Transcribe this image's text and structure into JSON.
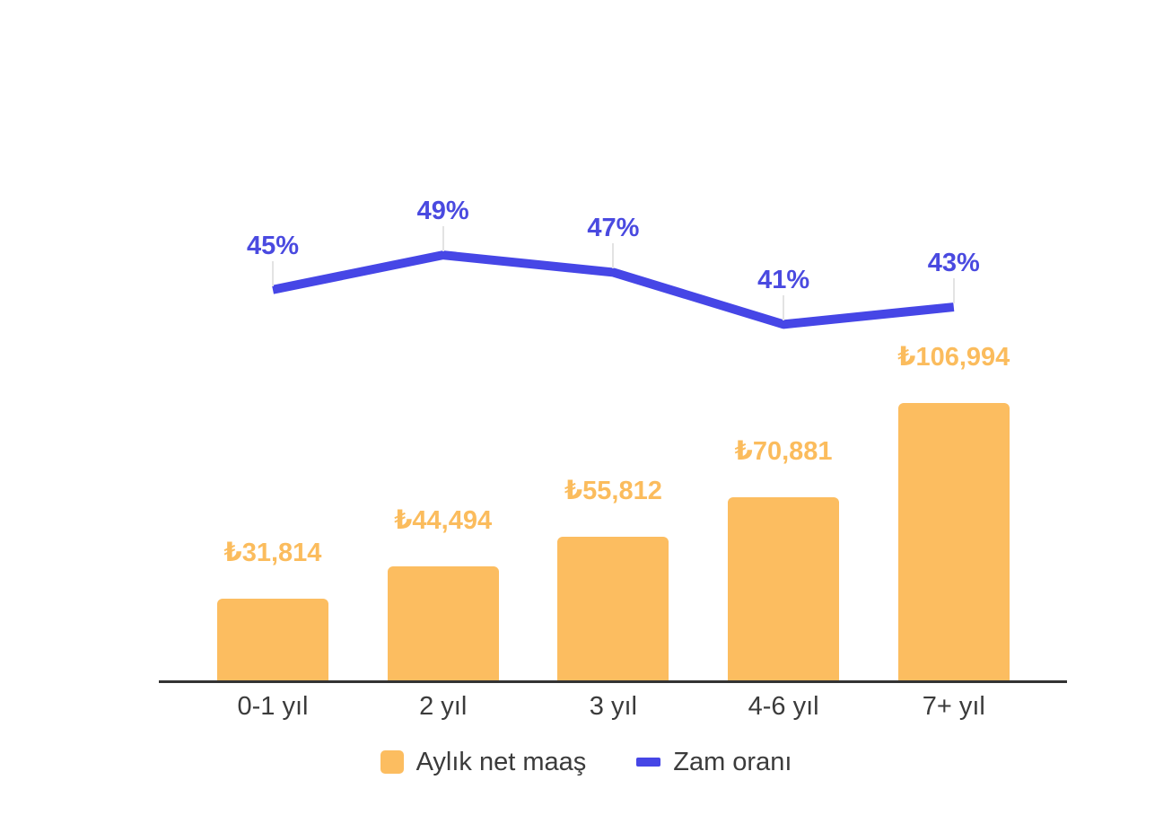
{
  "chart_data": {
    "type": "combo-bar-line",
    "categories": [
      "0-1 yıl",
      "2 yıl",
      "3 yıl",
      "4-6 yıl",
      "7+ yıl"
    ],
    "series": [
      {
        "name": "Aylık net maaş",
        "kind": "bar",
        "values": [
          31814,
          44494,
          55812,
          70881,
          106994
        ],
        "labels": [
          "₺31,814",
          "₺44,494",
          "₺55,812",
          "₺70,881",
          "₺106,994"
        ],
        "color": "#FCBD60",
        "label_color": "#FBBC5D"
      },
      {
        "name": "Zam oranı",
        "kind": "line",
        "values": [
          45,
          49,
          47,
          41,
          43
        ],
        "labels": [
          "45%",
          "49%",
          "47%",
          "41%",
          "43%"
        ],
        "color": "#4646E6",
        "label_color": "#4A4AE0"
      }
    ],
    "title": "",
    "xlabel": "",
    "ylabel": "",
    "grid": false,
    "legend_position": "bottom",
    "axes": {
      "x_baseline_color": "#333333",
      "text_color": "#3B3B3B",
      "annotation_stem_color": "#E3E3E3"
    }
  }
}
